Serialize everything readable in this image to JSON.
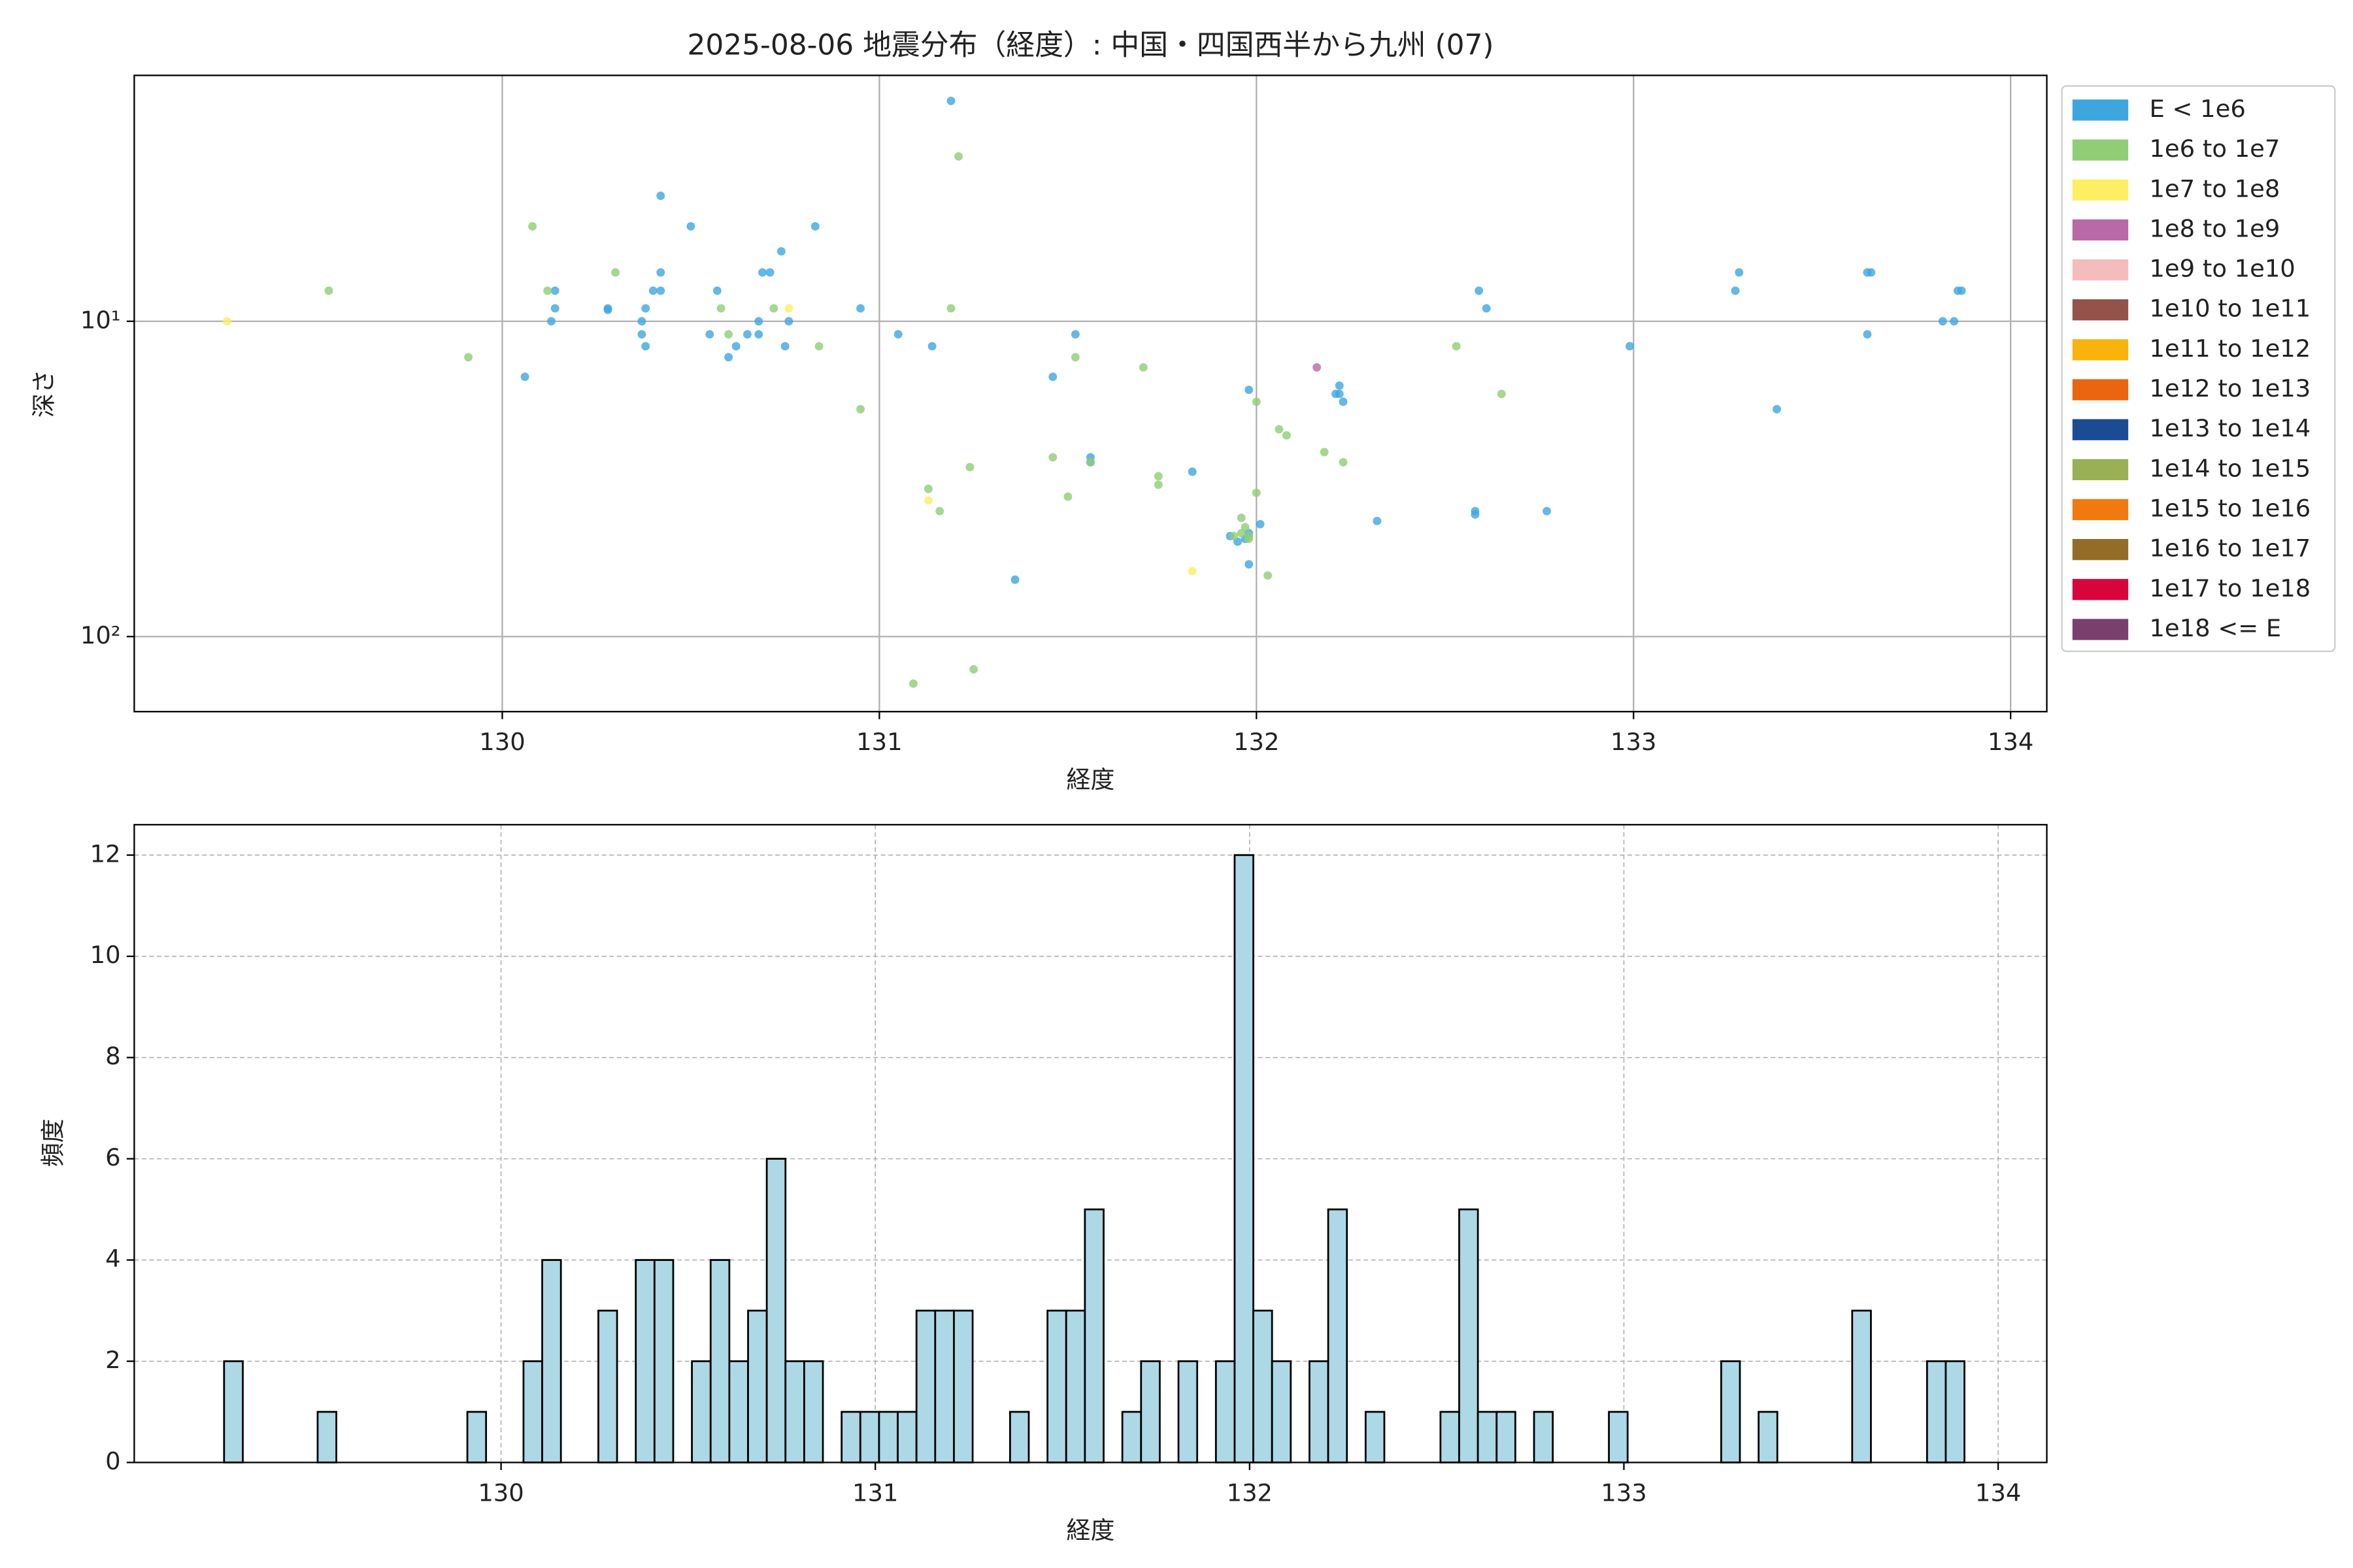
{
  "chart_data": [
    {
      "type": "scatter",
      "title": "2025-08-06 地震分布（経度）: 中国・四国西半から九州 (07)",
      "xlabel": "経度",
      "ylabel": "深さ",
      "xlim": [
        129.024,
        134.096
      ],
      "xticks": [
        130,
        131,
        132,
        133,
        134
      ],
      "ylim": [
        173,
        1.66
      ],
      "yscale": "log",
      "yticks": [
        {
          "value": 10,
          "label": "10¹"
        },
        {
          "value": 100,
          "label": "10²"
        }
      ],
      "grid": true,
      "legend": "outside right",
      "series": [
        {
          "name": "E < 1e6",
          "color": "#3ea6de",
          "x": [
            131.19,
            130.42,
            130.5,
            130.83,
            130.74,
            130.69,
            130.71,
            130.42,
            130.57,
            130.14,
            130.4,
            130.42,
            130.28,
            130.28,
            130.38,
            130.14,
            130.13,
            130.37,
            130.68,
            130.76,
            130.95,
            130.37,
            130.38,
            130.55,
            130.65,
            130.68,
            130.62,
            130.6,
            130.75,
            130.06,
            131.05,
            131.14,
            131.52,
            131.46,
            131.56,
            131.56,
            131.83,
            131.93,
            131.95,
            131.98,
            131.97,
            132.01,
            131.98,
            131.98,
            131.36,
            132.22,
            132.22,
            132.21,
            132.23,
            132.32,
            132.58,
            132.58,
            132.77,
            132.59,
            132.61,
            132.99,
            133.28,
            133.27,
            133.38,
            133.62,
            133.63,
            133.62,
            133.82,
            133.85,
            133.87,
            133.86
          ],
          "values": [
            2,
            4,
            5,
            5,
            6,
            7,
            7,
            7,
            8,
            8,
            8,
            8,
            9.1,
            9.2,
            9.1,
            9.1,
            10,
            10,
            10,
            10,
            9.1,
            11,
            12,
            11,
            11,
            11,
            12,
            13,
            12,
            15,
            11,
            12,
            11,
            15,
            27,
            28,
            30,
            48,
            50,
            47,
            49,
            44,
            59,
            16.5,
            66,
            16,
            17,
            17,
            18,
            43,
            40,
            41,
            40,
            8,
            9.1,
            12,
            7,
            8,
            19,
            7,
            7,
            11,
            10,
            10,
            8,
            8
          ]
        },
        {
          "name": "1e6 to 1e7",
          "color": "#90cd75",
          "x": [
            129.54,
            129.91,
            130.08,
            130.12,
            130.3,
            130.58,
            130.6,
            130.72,
            130.84,
            130.95,
            131.19,
            131.21,
            131.13,
            131.16,
            131.24,
            131.09,
            131.25,
            131.46,
            131.5,
            131.52,
            131.56,
            131.7,
            131.74,
            131.74,
            131.96,
            131.97,
            131.98,
            131.98,
            132.0,
            132.0,
            132.03,
            132.06,
            132.08,
            132.18,
            132.23,
            132.53,
            132.65,
            131.94,
            131.96
          ],
          "values": [
            8,
            13,
            5,
            8,
            7,
            9.1,
            11,
            9.1,
            12,
            19,
            9.1,
            3,
            34,
            40,
            29,
            141,
            127,
            27,
            36,
            13,
            28,
            14,
            31,
            33,
            42,
            45,
            48,
            49,
            35,
            18,
            64,
            22,
            23,
            26,
            28,
            12,
            17,
            48,
            47
          ]
        },
        {
          "name": "1e7 to 1e8",
          "color": "#fdee64",
          "x": [
            129.27,
            130.76,
            131.13,
            131.83
          ],
          "values": [
            10,
            9.1,
            37,
            62
          ]
        },
        {
          "name": "1e8 to 1e9",
          "color": "#b968a8",
          "x": [
            132.16
          ],
          "values": [
            14
          ]
        },
        {
          "name": "1e9 to 1e10",
          "color": "#f5bcbc",
          "x": [],
          "values": []
        },
        {
          "name": "1e10 to 1e11",
          "color": "#94524a",
          "x": [],
          "values": []
        },
        {
          "name": "1e11 to 1e12",
          "color": "#f8b40c",
          "x": [],
          "values": []
        },
        {
          "name": "1e12 to 1e13",
          "color": "#eb6410",
          "x": [],
          "values": []
        },
        {
          "name": "1e13 to 1e14",
          "color": "#1b4b94",
          "x": [],
          "values": []
        },
        {
          "name": "1e14 to 1e15",
          "color": "#9ab054",
          "x": [],
          "values": []
        },
        {
          "name": "1e15 to 1e16",
          "color": "#f07a10",
          "x": [],
          "values": []
        },
        {
          "name": "1e16 to 1e17",
          "color": "#946c28",
          "x": [],
          "values": []
        },
        {
          "name": "1e17 to 1e18",
          "color": "#d7053b",
          "x": [],
          "values": []
        },
        {
          "name": "1e18 <= E",
          "color": "#7b3f6e",
          "x": [],
          "values": []
        }
      ]
    },
    {
      "type": "histogram",
      "xlabel": "経度",
      "ylabel": "頻度",
      "xlim": [
        129.02,
        134.13
      ],
      "xticks": [
        130,
        131,
        132,
        133,
        134
      ],
      "ylim": [
        0,
        12.6
      ],
      "yticks": [
        0,
        2,
        4,
        6,
        8,
        10,
        12
      ],
      "grid": true,
      "color": "#add8e6",
      "edgecolor": "#000000",
      "bins": [
        129.26,
        129.31,
        129.36,
        129.41,
        129.46,
        129.51,
        129.56,
        129.61,
        129.66,
        129.71,
        129.76,
        129.81,
        129.86,
        129.91,
        129.96,
        130.01,
        130.06,
        130.11,
        130.16,
        130.21,
        130.26,
        130.31,
        130.36,
        130.41,
        130.46,
        130.51,
        130.56,
        130.61,
        130.66,
        130.71,
        130.76,
        130.81,
        130.86,
        130.91,
        130.96,
        131.01,
        131.06,
        131.11,
        131.16,
        131.21,
        131.26,
        131.31,
        131.36,
        131.41,
        131.46,
        131.51,
        131.56,
        131.61,
        131.66,
        131.71,
        131.76,
        131.81,
        131.86,
        131.91,
        131.96,
        132.01,
        132.06,
        132.11,
        132.16,
        132.21,
        132.26,
        132.31,
        132.36,
        132.41,
        132.46,
        132.51,
        132.56,
        132.61,
        132.66,
        132.71,
        132.76,
        132.81,
        132.86,
        132.91,
        132.96,
        133.01,
        133.06,
        133.11,
        133.16,
        133.21,
        133.26,
        133.31,
        133.36,
        133.41,
        133.46,
        133.51,
        133.56,
        133.61,
        133.66,
        133.71,
        133.76,
        133.81,
        133.86,
        133.91
      ],
      "values": [
        2,
        0,
        0,
        0,
        0,
        1,
        0,
        0,
        0,
        0,
        0,
        0,
        0,
        1,
        0,
        0,
        2,
        4,
        0,
        0,
        3,
        0,
        4,
        4,
        0,
        2,
        4,
        2,
        3,
        6,
        2,
        2,
        0,
        1,
        1,
        1,
        1,
        3,
        3,
        3,
        0,
        0,
        1,
        0,
        3,
        3,
        5,
        0,
        1,
        2,
        0,
        2,
        0,
        2,
        12,
        3,
        2,
        0,
        2,
        5,
        0,
        1,
        0,
        0,
        0,
        1,
        5,
        1,
        1,
        0,
        1,
        0,
        0,
        0,
        1,
        0,
        0,
        0,
        0,
        0,
        2,
        0,
        1,
        0,
        0,
        0,
        0,
        3,
        0,
        0,
        0,
        2,
        2
      ]
    }
  ]
}
